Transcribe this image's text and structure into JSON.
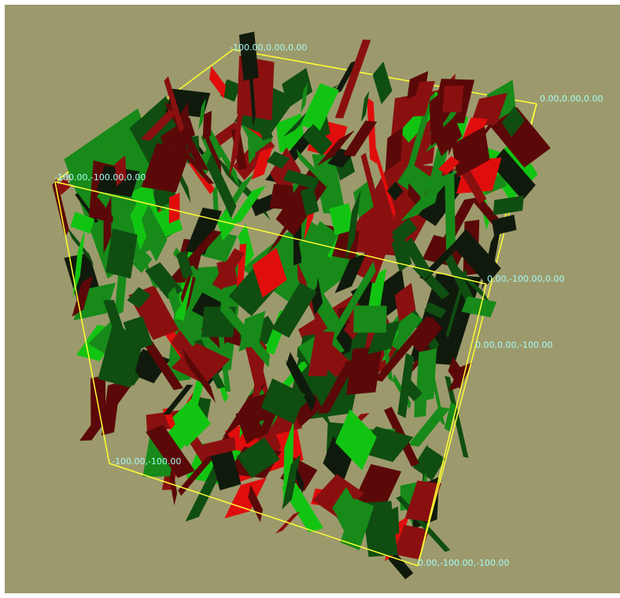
{
  "scene": {
    "background_color": "#9c9a6c",
    "box_edge_color": "#ffff33",
    "label_color": "#a7fbf6",
    "fracture_colors": {
      "green_dark": "#0f4d11",
      "green": "#178a19",
      "green_bright": "#12c412",
      "red_dark": "#5b0808",
      "red": "#8a1010",
      "red_bright": "#e00d0d",
      "near_black": "#101a0c"
    },
    "corner_labels": {
      "top_back_left": "-100.00,0.00,0.00",
      "top_back_right": "0.00,0.00,0.00",
      "top_front_left": "-100.00,-100.00,0.00",
      "top_front_right": "0.00,-100.00,0.00",
      "bottom_back_right": "0.00,0.00,-100.00",
      "bottom_front_left": "-100.00,-100.00",
      "bottom_front_right": "0.00,-100.00,-100.00"
    }
  }
}
